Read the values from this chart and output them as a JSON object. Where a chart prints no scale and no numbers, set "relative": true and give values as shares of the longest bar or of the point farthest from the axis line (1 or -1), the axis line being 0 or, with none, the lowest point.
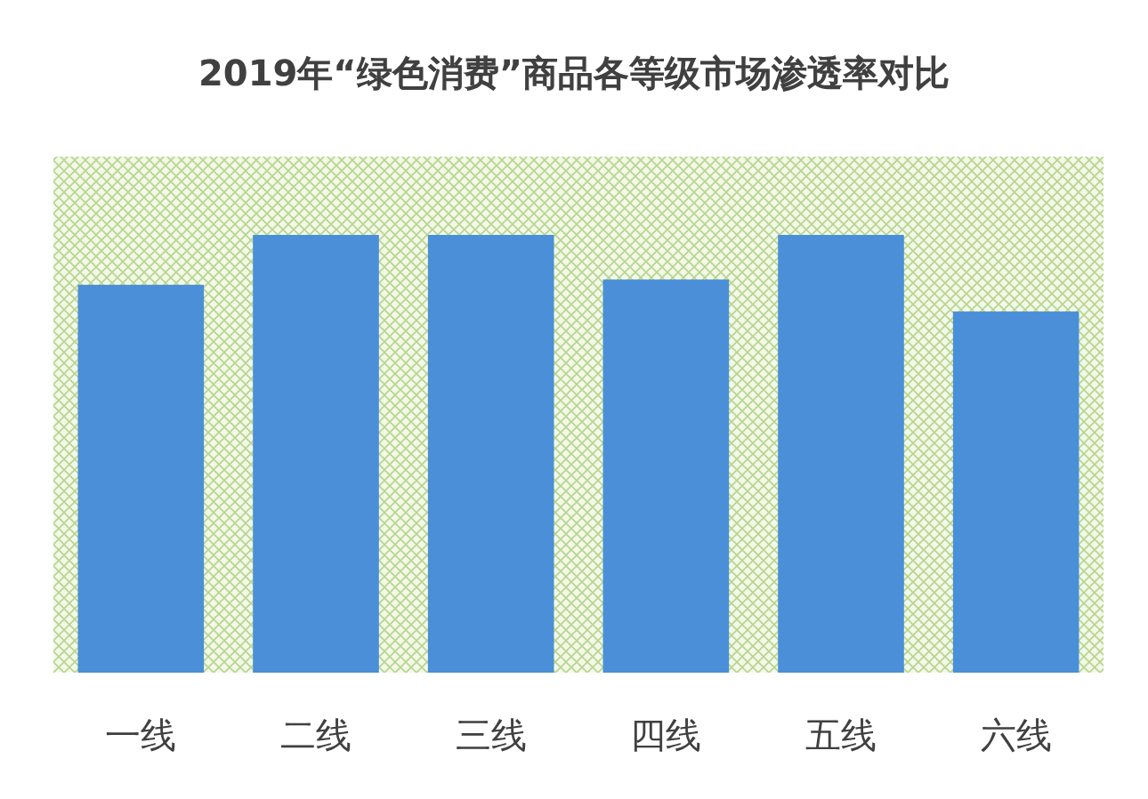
{
  "chart_data": {
    "type": "bar",
    "title": "2019年“绿色消费”商品各等级市场渗透率对比",
    "categories": [
      "一线",
      "二线",
      "三线",
      "四线",
      "五线",
      "六线"
    ],
    "values": [
      0.886,
      1,
      1,
      0.898,
      1,
      0.825
    ],
    "color": "#4a8fd8",
    "relative": true
  }
}
